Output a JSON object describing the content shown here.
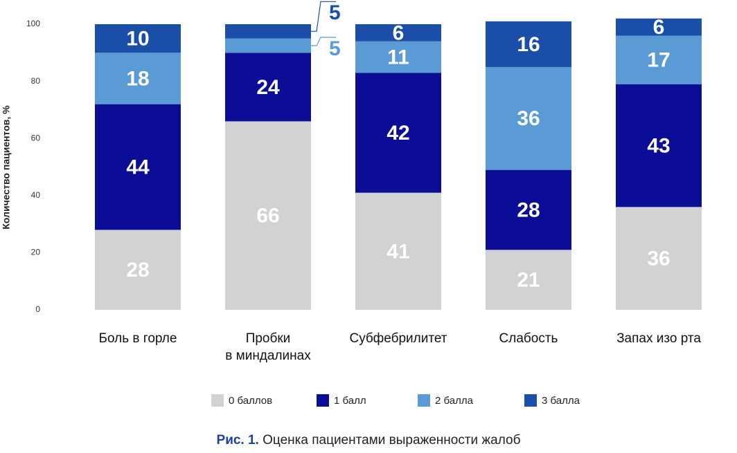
{
  "chart_data": {
    "type": "stacked-bar",
    "y_label": "Количество пациентов, %",
    "categories": [
      "Боль в горле",
      "Пробки\nв миндалинах",
      "Субфебрилитет",
      "Слабость",
      "Запах изо рта"
    ],
    "series": [
      {
        "name": "0 баллов",
        "color": "#d1d2d4",
        "values": [
          28,
          66,
          41,
          21,
          36
        ]
      },
      {
        "name": "1 балл",
        "color": "#0c0d96",
        "values": [
          44,
          24,
          42,
          28,
          43
        ]
      },
      {
        "name": "2 балла",
        "color": "#5b9bd5",
        "values": [
          18,
          5,
          11,
          36,
          17
        ]
      },
      {
        "name": "3 балла",
        "color": "#1b4ea8",
        "values": [
          10,
          5,
          6,
          16,
          6
        ]
      }
    ],
    "ylim": [
      0,
      100
    ],
    "yticks": [
      0,
      20,
      40,
      60,
      80,
      100
    ],
    "grid": false,
    "caption": {
      "prefix": "Рис. 1.",
      "text": "Оценка пациентами выраженности жалоб"
    }
  }
}
